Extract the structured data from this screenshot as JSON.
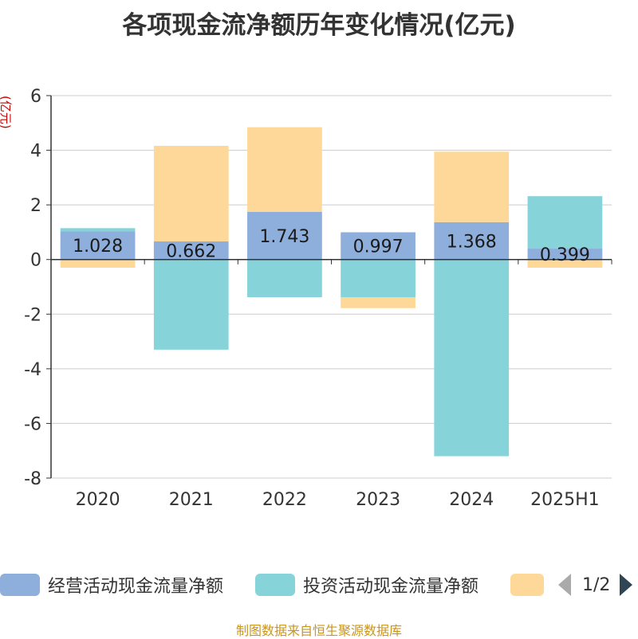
{
  "title": "各项现金流净额历年变化情况(亿元)",
  "source": "制图数据来自恒生聚源数据库",
  "chart_data": {
    "type": "bar",
    "stacked": true,
    "title": "各项现金流净额历年变化情况(亿元)",
    "ylabel": "(亿元)",
    "xlabel": "",
    "ylim": [
      -8,
      6
    ],
    "yticks": [
      6,
      4,
      2,
      0,
      -2,
      -4,
      -6,
      -8
    ],
    "categories": [
      "2020",
      "2021",
      "2022",
      "2023",
      "2024",
      "2025H1"
    ],
    "series": [
      {
        "name": "经营活动现金流量净额",
        "color": "#8eaedb",
        "values": [
          1.028,
          0.662,
          1.743,
          0.997,
          1.368,
          0.399
        ]
      },
      {
        "name": "投资活动现金流量净额",
        "color": "#86d4d9",
        "values": [
          0.12,
          -3.3,
          -1.38,
          -1.38,
          -7.2,
          1.92
        ]
      },
      {
        "name": "",
        "color": "#fdd898",
        "values": [
          -0.3,
          3.5,
          3.1,
          -0.4,
          2.58,
          -0.3
        ]
      }
    ],
    "data_labels": [
      "1.028",
      "0.662",
      "1.743",
      "0.997",
      "1.368",
      "0.399"
    ],
    "legend_position": "bottom"
  },
  "legend": {
    "items": [
      {
        "label": "经营活动现金流量净额",
        "color": "#8eaedb"
      },
      {
        "label": "投资活动现金流量净额",
        "color": "#86d4d9"
      },
      {
        "label": "",
        "color": "#fdd898"
      }
    ],
    "page_text": "1/2"
  }
}
